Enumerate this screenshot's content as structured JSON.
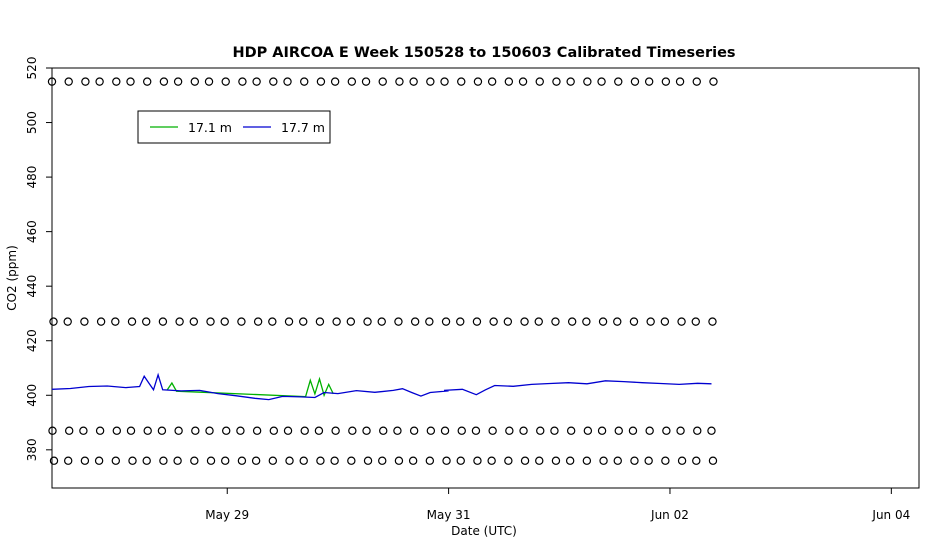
{
  "chart_data": {
    "type": "line",
    "title": "HDP AIRCOA E  Week 150528 to 150603  Calibrated Timeseries",
    "xlabel": "Date (UTC)",
    "ylabel": "CO2 (ppm)",
    "x_axis": {
      "type": "date",
      "range": [
        "2015-05-27 10:00",
        "2015-06-04 06:00"
      ],
      "ticks": [
        {
          "date": "2015-05-29",
          "label": "May 29"
        },
        {
          "date": "2015-05-31",
          "label": "May 31"
        },
        {
          "date": "2015-06-02",
          "label": "Jun 02"
        },
        {
          "date": "2015-06-04",
          "label": "Jun 04"
        }
      ]
    },
    "y_axis": {
      "range": [
        366,
        520
      ],
      "ticks": [
        380,
        400,
        420,
        440,
        460,
        480,
        500,
        520
      ]
    },
    "legend": {
      "position": "top-left",
      "entries": [
        {
          "label": "17.1 m",
          "color": "#00b000"
        },
        {
          "label": "17.7 m",
          "color": "#0000d0"
        }
      ]
    },
    "series": [
      {
        "name": "17.1 m",
        "color": "#00b000",
        "points": [
          [
            "2015-05-28 11:00",
            402.0
          ],
          [
            "2015-05-28 12:00",
            404.5
          ],
          [
            "2015-05-28 13:00",
            401.5
          ],
          [
            "2015-05-29 17:00",
            399.5
          ],
          [
            "2015-05-29 18:00",
            405.5
          ],
          [
            "2015-05-29 19:00",
            400.5
          ],
          [
            "2015-05-29 20:00",
            406.0
          ],
          [
            "2015-05-29 21:00",
            400.0
          ],
          [
            "2015-05-29 22:00",
            404.0
          ],
          [
            "2015-05-29 23:00",
            400.5
          ]
        ]
      },
      {
        "name": "17.7 m",
        "color": "#0000d0",
        "points": [
          [
            "2015-05-27 10:00",
            402.2
          ],
          [
            "2015-05-27 14:00",
            402.5
          ],
          [
            "2015-05-27 18:00",
            403.2
          ],
          [
            "2015-05-27 22:00",
            403.4
          ],
          [
            "2015-05-28 02:00",
            402.8
          ],
          [
            "2015-05-28 05:00",
            403.2
          ],
          [
            "2015-05-28 06:00",
            407.0
          ],
          [
            "2015-05-28 07:00",
            404.5
          ],
          [
            "2015-05-28 08:00",
            402.0
          ],
          [
            "2015-05-28 09:00",
            407.5
          ],
          [
            "2015-05-28 10:00",
            402.0
          ],
          [
            "2015-05-28 14:00",
            401.6
          ],
          [
            "2015-05-28 18:00",
            401.8
          ],
          [
            "2015-05-28 22:00",
            400.6
          ],
          [
            "2015-05-29 02:00",
            399.8
          ],
          [
            "2015-05-29 06:00",
            398.9
          ],
          [
            "2015-05-29 09:00",
            398.4
          ],
          [
            "2015-05-29 12:00",
            399.6
          ],
          [
            "2015-05-29 16:00",
            399.4
          ],
          [
            "2015-05-29 19:00",
            399.2
          ],
          [
            "2015-05-29 21:00",
            401.0
          ],
          [
            "2015-05-30 00:00",
            400.6
          ],
          [
            "2015-05-30 04:00",
            401.7
          ],
          [
            "2015-05-30 08:00",
            401.1
          ],
          [
            "2015-05-30 12:00",
            401.8
          ],
          [
            "2015-05-30 14:00",
            402.4
          ],
          [
            "2015-05-30 16:00",
            401.0
          ],
          [
            "2015-05-30 18:00",
            399.7
          ],
          [
            "2015-05-30 20:00",
            401.0
          ],
          [
            "2015-05-31 00:00",
            401.6
          ],
          [
            "2015-05-30 23:00",
            401.8
          ],
          [
            "2015-05-31 03:00",
            402.2
          ],
          [
            "2015-05-31 06:00",
            400.2
          ],
          [
            "2015-05-31 08:00",
            402.0
          ],
          [
            "2015-05-31 10:00",
            403.6
          ],
          [
            "2015-05-31 14:00",
            403.3
          ],
          [
            "2015-05-31 18:00",
            404.0
          ],
          [
            "2015-05-31 22:00",
            404.3
          ],
          [
            "2015-06-01 02:00",
            404.6
          ],
          [
            "2015-06-01 06:00",
            404.2
          ],
          [
            "2015-06-01 10:00",
            405.3
          ],
          [
            "2015-06-01 14:00",
            405.0
          ],
          [
            "2015-06-01 18:00",
            404.6
          ],
          [
            "2015-06-01 22:00",
            404.3
          ],
          [
            "2015-06-02 02:00",
            404.0
          ],
          [
            "2015-06-02 06:00",
            404.4
          ],
          [
            "2015-06-02 09:00",
            404.2
          ]
        ]
      }
    ],
    "marker_rows": {
      "symbol": "open-circle",
      "color": "#000000",
      "levels": [
        515,
        427,
        387,
        376
      ],
      "x_range": [
        "2015-05-27 10:00",
        "2015-06-02 09:00"
      ]
    },
    "grid": false
  }
}
